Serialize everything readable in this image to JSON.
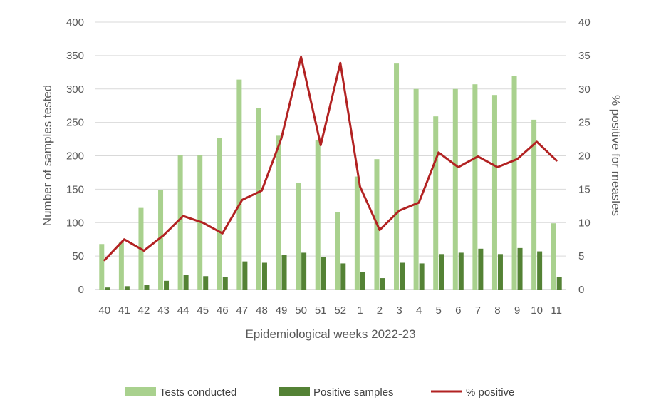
{
  "colors": {
    "tests": "#A9D18E",
    "positive_samples": "#548235",
    "pct_line": "#B22222",
    "grid": "#D9D9D9",
    "text": "#595959"
  },
  "chart_data": {
    "type": "bar",
    "title": "",
    "xlabel": "Epidemiological weeks 2022-23",
    "ylabel": "Number of samples tested",
    "y2label": "% positive for measles",
    "ylim": [
      0,
      400
    ],
    "y2lim": [
      0,
      40
    ],
    "yticks": [
      "0",
      "50",
      "100",
      "150",
      "200",
      "250",
      "300",
      "350",
      "400"
    ],
    "y2ticks": [
      "0",
      "5",
      "10",
      "15",
      "20",
      "25",
      "30",
      "35",
      "40"
    ],
    "grid": true,
    "legend_position": "bottom",
    "categories": [
      "40",
      "41",
      "42",
      "43",
      "44",
      "45",
      "46",
      "47",
      "48",
      "49",
      "50",
      "51",
      "52",
      "1",
      "2",
      "3",
      "4",
      "5",
      "6",
      "7",
      "8",
      "9",
      "10",
      "11"
    ],
    "series": [
      {
        "name": "Tests conducted",
        "kind": "bar",
        "axis": "left",
        "values": [
          68,
          71,
          122,
          149,
          201,
          201,
          227,
          314,
          271,
          230,
          160,
          223,
          116,
          169,
          195,
          338,
          300,
          259,
          300,
          307,
          291,
          320,
          254,
          99
        ]
      },
      {
        "name": "Positive samples",
        "kind": "bar",
        "axis": "left",
        "values": [
          3,
          5,
          7,
          13,
          22,
          20,
          19,
          42,
          40,
          52,
          55,
          48,
          39,
          26,
          17,
          40,
          39,
          53,
          55,
          61,
          53,
          62,
          57,
          19
        ]
      },
      {
        "name": "% positive",
        "kind": "line",
        "axis": "right",
        "values": [
          4.4,
          7.5,
          5.8,
          8.1,
          11.0,
          10.0,
          8.4,
          13.4,
          14.8,
          22.6,
          34.8,
          21.6,
          33.9,
          15.4,
          8.9,
          11.8,
          13.0,
          20.5,
          18.3,
          19.9,
          18.3,
          19.5,
          22.1,
          19.3
        ]
      }
    ]
  }
}
